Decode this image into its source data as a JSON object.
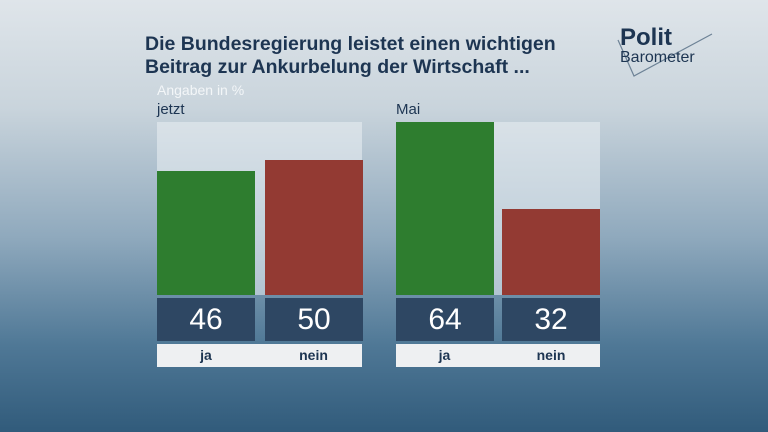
{
  "header": {
    "title_line1": "Die Bundesregierung leistet einen wichtigen",
    "title_line2": "Beitrag zur Ankurbelung der Wirtschaft ..."
  },
  "logo": {
    "line1": "Polit",
    "line2": "Barometer"
  },
  "chart_data": {
    "type": "bar",
    "subtitle": "Angaben in %",
    "groups": [
      {
        "label": "jetzt",
        "categories": [
          "ja",
          "nein"
        ],
        "values": [
          46,
          50
        ]
      },
      {
        "label": "Mai",
        "categories": [
          "ja",
          "nein"
        ],
        "values": [
          64,
          32
        ]
      }
    ],
    "colors": {
      "ja": "#2e7d2f",
      "nein": "#933a33"
    },
    "ylim": [
      0,
      64
    ]
  }
}
